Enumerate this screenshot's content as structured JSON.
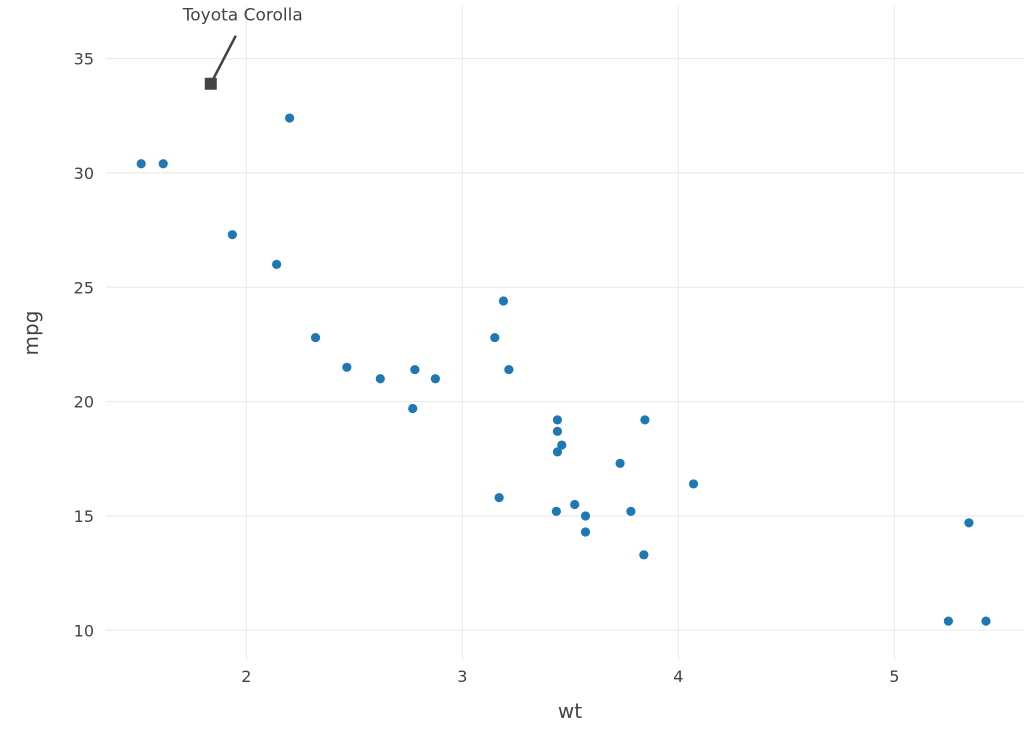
{
  "chart_data": {
    "type": "scatter",
    "xlabel": "wt",
    "ylabel": "mpg",
    "xlim": [
      1.35,
      5.6
    ],
    "ylim": [
      8.7,
      37.3
    ],
    "xticks": [
      2,
      3,
      4,
      5
    ],
    "yticks": [
      10,
      15,
      20,
      25,
      30,
      35
    ],
    "grid": true,
    "series": [
      {
        "x": [
          1.513,
          1.615,
          1.935,
          2.14,
          2.2,
          2.32,
          2.465,
          2.62,
          2.77,
          2.78,
          2.875,
          3.15,
          3.17,
          3.19,
          3.215,
          3.435,
          3.44,
          3.44,
          3.44,
          3.46,
          3.52,
          3.57,
          3.57,
          3.73,
          3.78,
          3.84,
          3.845,
          4.07,
          5.25,
          5.345,
          5.424
        ],
        "y": [
          30.4,
          30.4,
          27.3,
          26.0,
          32.4,
          22.8,
          21.5,
          21.0,
          19.7,
          21.4,
          21.0,
          22.8,
          15.8,
          24.4,
          21.4,
          15.2,
          18.7,
          19.2,
          17.8,
          18.1,
          15.5,
          15.0,
          14.3,
          17.3,
          15.2,
          13.3,
          19.2,
          16.4,
          10.4,
          14.7,
          10.4
        ]
      }
    ],
    "annotations": [
      {
        "text": "Toyota Corolla",
        "x": 1.835,
        "y": 33.9,
        "marker": "square"
      }
    ]
  }
}
